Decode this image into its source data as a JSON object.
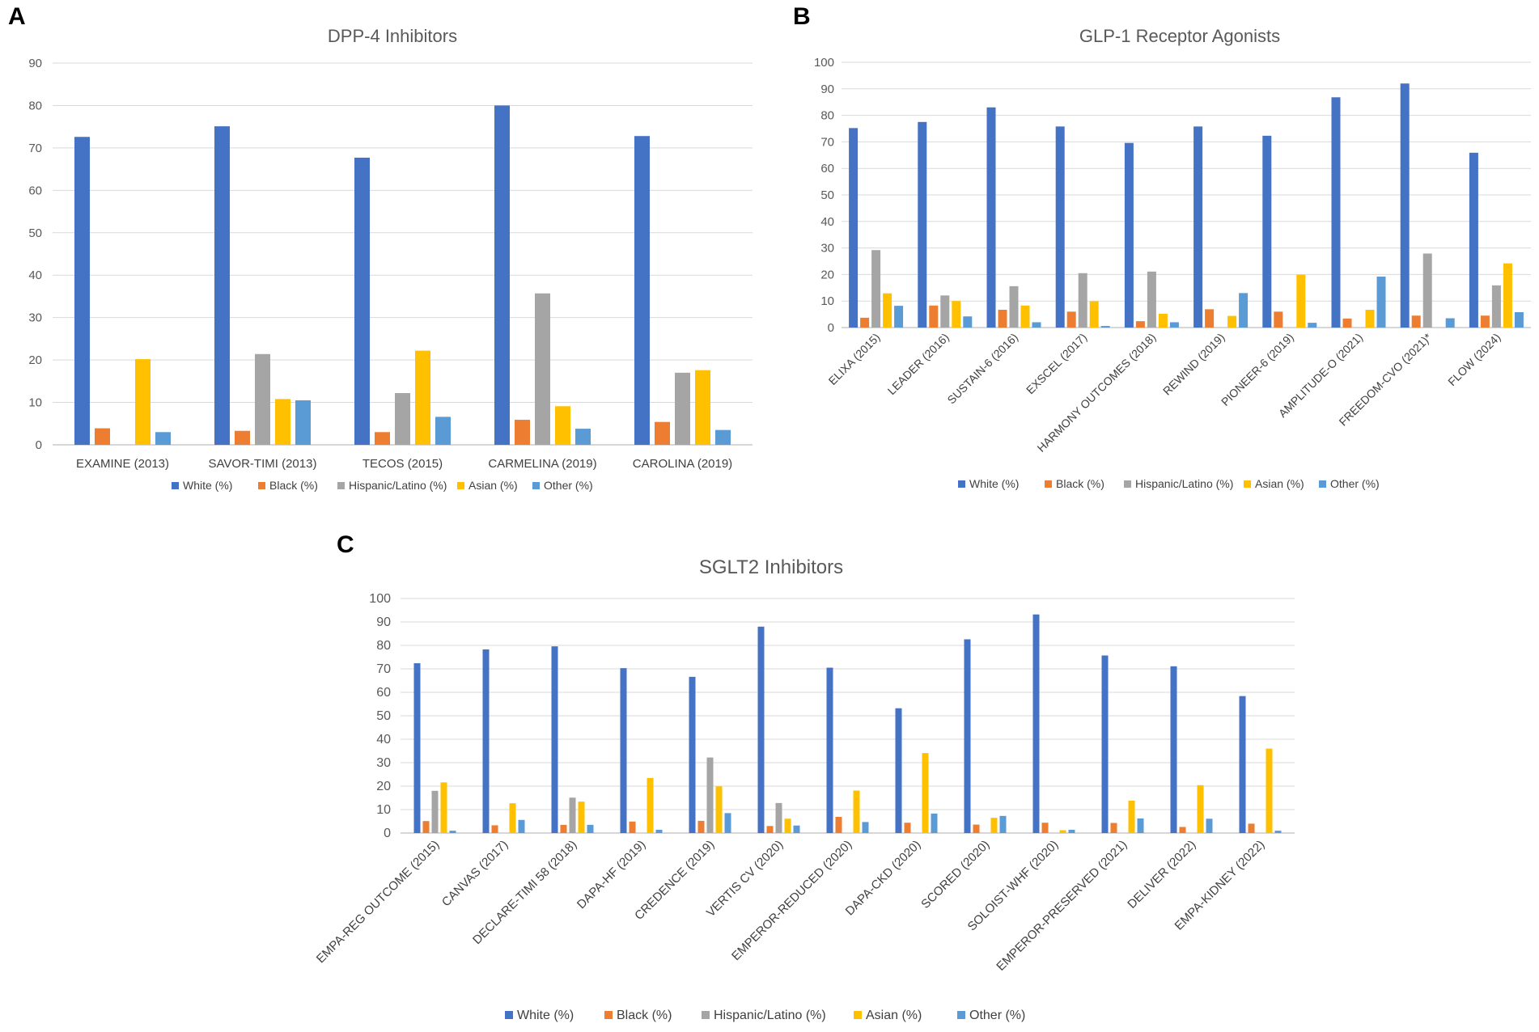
{
  "colors": {
    "White (%)": "#4472C4",
    "Black (%)": "#ED7D31",
    "Hispanic/Latino (%)": "#A5A5A5",
    "Asian (%)": "#FFC000",
    "Other (%)": "#5B9BD5"
  },
  "chart_data": [
    {
      "panel": "A",
      "type": "bar",
      "title": "DPP-4 Inhibitors",
      "xlabel": "",
      "ylabel": "",
      "ylim": [
        0,
        90
      ],
      "yticks": [
        0,
        10,
        20,
        30,
        40,
        50,
        60,
        70,
        80,
        90
      ],
      "grid": true,
      "legend": "bottom",
      "categories": [
        "EXAMINE (2013)",
        "SAVOR-TIMI (2013)",
        "TECOS (2015)",
        "CARMELINA (2019)",
        "CAROLINA (2019)"
      ],
      "series": [
        {
          "name": "White (%)",
          "values": [
            72.6,
            75.1,
            67.7,
            80.0,
            72.8
          ]
        },
        {
          "name": "Black (%)",
          "values": [
            3.9,
            3.3,
            3.0,
            5.9,
            5.4
          ]
        },
        {
          "name": "Hispanic/Latino (%)",
          "values": [
            0,
            21.4,
            12.2,
            35.7,
            17.0
          ]
        },
        {
          "name": "Asian (%)",
          "values": [
            20.2,
            10.8,
            22.2,
            9.1,
            17.6
          ]
        },
        {
          "name": "Other (%)",
          "values": [
            3.0,
            10.5,
            6.6,
            3.8,
            3.5
          ]
        }
      ]
    },
    {
      "panel": "B",
      "type": "bar",
      "title": "GLP-1 Receptor Agonists",
      "xlabel": "",
      "ylabel": "",
      "ylim": [
        0,
        100
      ],
      "yticks": [
        0,
        10,
        20,
        30,
        40,
        50,
        60,
        70,
        80,
        90,
        100
      ],
      "grid": true,
      "legend": "bottom",
      "categories": [
        "ELIXA (2015)",
        "LEADER (2016)",
        "SUSTAIN-6 (2016)",
        "EXSCEL (2017)",
        "HARMONY OUTCOMES (2018)",
        "REWIND (2019)",
        "PIONEER-6 (2019)",
        "AMPLITUDE-O (2021)",
        "FREEDOM-CVO (2021)*",
        "FLOW (2024)"
      ],
      "series": [
        {
          "name": "White (%)",
          "values": [
            75.2,
            77.5,
            83.0,
            75.8,
            69.6,
            75.8,
            72.3,
            86.8,
            92.0,
            65.9
          ]
        },
        {
          "name": "Black (%)",
          "values": [
            3.7,
            8.3,
            6.7,
            6.0,
            2.4,
            6.9,
            6.0,
            3.4,
            4.5,
            4.5
          ]
        },
        {
          "name": "Hispanic/Latino (%)",
          "values": [
            29.2,
            12.1,
            15.6,
            20.5,
            21.1,
            0,
            0,
            0,
            27.9,
            15.9
          ]
        },
        {
          "name": "Asian (%)",
          "values": [
            12.9,
            10.0,
            8.3,
            9.9,
            5.2,
            4.4,
            19.9,
            6.7,
            0,
            24.2
          ]
        },
        {
          "name": "Other (%)",
          "values": [
            8.2,
            4.2,
            2.0,
            0.6,
            2.0,
            13.0,
            1.8,
            19.2,
            3.5,
            5.8
          ]
        }
      ]
    },
    {
      "panel": "C",
      "type": "bar",
      "title": "SGLT2 Inhibitors",
      "xlabel": "",
      "ylabel": "",
      "ylim": [
        0,
        100
      ],
      "yticks": [
        0,
        10,
        20,
        30,
        40,
        50,
        60,
        70,
        80,
        90,
        100
      ],
      "grid": true,
      "legend": "bottom",
      "categories": [
        "EMPA-REG OUTCOME (2015)",
        "CANVAS (2017)",
        "DECLARE-TIMI 58 (2018)",
        "DAPA-HF (2019)",
        "CREDENCE (2019)",
        "VERTIS CV (2020)",
        "EMPEROR-REDUCED (2020)",
        "DAPA-CKD (2020)",
        "SCORED (2020)",
        "SOLOIST-WHF (2020)",
        "EMPEROR-PRESERVED (2021)",
        "DELIVER (2022)",
        "EMPA-KIDNEY (2022)"
      ],
      "series": [
        {
          "name": "White (%)",
          "values": [
            72.4,
            78.3,
            79.6,
            70.3,
            66.6,
            88.0,
            70.5,
            53.2,
            82.6,
            93.2,
            75.7,
            71.1,
            58.4
          ]
        },
        {
          "name": "Black (%)",
          "values": [
            5.1,
            3.3,
            3.5,
            4.9,
            5.2,
            3.0,
            6.9,
            4.4,
            3.6,
            4.4,
            4.3,
            2.6,
            4.0
          ]
        },
        {
          "name": "Hispanic/Latino (%)",
          "values": [
            18.0,
            0,
            15.1,
            0,
            32.2,
            12.8,
            0,
            0,
            0,
            0,
            0,
            0,
            0
          ]
        },
        {
          "name": "Asian (%)",
          "values": [
            21.6,
            12.7,
            13.4,
            23.5,
            19.9,
            6.1,
            18.1,
            34.1,
            6.5,
            1.2,
            13.8,
            20.4,
            36.0
          ]
        },
        {
          "name": "Other (%)",
          "values": [
            1.0,
            5.6,
            3.5,
            1.4,
            8.5,
            3.2,
            4.7,
            8.3,
            7.3,
            1.4,
            6.2,
            6.1,
            1.0
          ]
        }
      ]
    }
  ]
}
